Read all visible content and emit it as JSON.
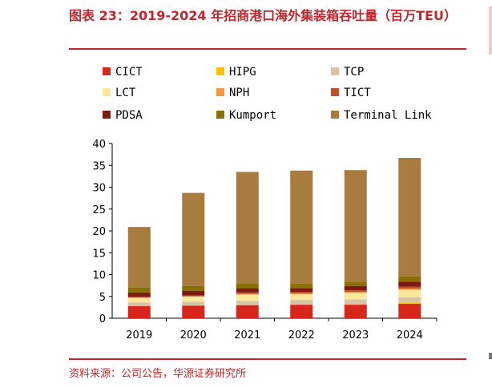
{
  "header": {
    "title": "图表 23：2019-2024 年招商港口海外集装箱吞吐量（百万TEU）"
  },
  "footer": {
    "source": "资料来源：公司公告，华源证券研究所"
  },
  "chart_data": {
    "type": "bar",
    "stacked": true,
    "categories": [
      "2019",
      "2020",
      "2021",
      "2022",
      "2023",
      "2024"
    ],
    "ylim": [
      0,
      40
    ],
    "yticks": [
      0,
      5,
      10,
      15,
      20,
      25,
      30,
      35,
      40
    ],
    "grid": false,
    "legend_position": "top",
    "series": [
      {
        "name": "CICT",
        "color": "#d9261c",
        "values": [
          2.8,
          2.9,
          3.0,
          3.1,
          3.1,
          3.3
        ]
      },
      {
        "name": "HIPG",
        "color": "#ffc000",
        "values": [
          0.0,
          0.0,
          0.0,
          0.0,
          0.1,
          0.2
        ]
      },
      {
        "name": "TCP",
        "color": "#d9c3a5",
        "values": [
          0.8,
          0.9,
          1.0,
          1.1,
          1.1,
          1.3
        ]
      },
      {
        "name": "LCT",
        "color": "#fbe89c",
        "values": [
          1.1,
          1.2,
          1.4,
          1.3,
          1.5,
          1.7
        ]
      },
      {
        "name": "NPH",
        "color": "#f79646",
        "values": [
          0.0,
          0.0,
          0.2,
          0.2,
          0.2,
          0.3
        ]
      },
      {
        "name": "TICT",
        "color": "#c0502c",
        "values": [
          0.2,
          0.2,
          0.3,
          0.3,
          0.4,
          0.4
        ]
      },
      {
        "name": "PDSA",
        "color": "#7f1a10",
        "values": [
          1.0,
          1.1,
          1.0,
          0.9,
          1.0,
          1.2
        ]
      },
      {
        "name": "Kumport",
        "color": "#8a7000",
        "values": [
          1.2,
          1.1,
          1.1,
          1.0,
          1.0,
          1.2
        ]
      },
      {
        "name": "Terminal Link",
        "color": "#a87c3e",
        "values": [
          13.8,
          21.3,
          25.5,
          25.9,
          25.5,
          27.1
        ]
      }
    ]
  }
}
